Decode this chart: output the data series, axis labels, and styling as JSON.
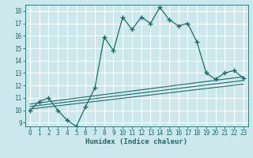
{
  "xlabel": "Humidex (Indice chaleur)",
  "background_color": "#cce8ec",
  "grid_color": "#ffffff",
  "line_color": "#1a6b6b",
  "xlim": [
    -0.5,
    23.5
  ],
  "ylim": [
    8.7,
    18.5
  ],
  "xticks": [
    0,
    1,
    2,
    3,
    4,
    5,
    6,
    7,
    8,
    9,
    10,
    11,
    12,
    13,
    14,
    15,
    16,
    17,
    18,
    19,
    20,
    21,
    22,
    23
  ],
  "yticks": [
    9,
    10,
    11,
    12,
    13,
    14,
    15,
    16,
    17,
    18
  ],
  "series": [
    {
      "x": [
        0,
        1,
        2,
        3,
        4,
        5,
        6,
        7,
        8,
        9,
        10,
        11,
        12,
        13,
        14,
        15,
        16,
        17,
        18,
        19,
        20,
        21,
        22,
        23
      ],
      "y": [
        10.0,
        10.7,
        11.0,
        10.0,
        9.2,
        8.7,
        10.3,
        11.8,
        15.9,
        14.8,
        17.5,
        16.5,
        17.5,
        17.0,
        18.3,
        17.3,
        16.8,
        17.0,
        15.5,
        13.0,
        12.5,
        13.0,
        13.2,
        12.6
      ],
      "marker": "+",
      "markersize": 4,
      "linewidth": 0.9,
      "linestyle": "-"
    },
    {
      "x": [
        0,
        23
      ],
      "y": [
        10.5,
        12.7
      ],
      "marker": null,
      "linewidth": 0.8,
      "linestyle": "-"
    },
    {
      "x": [
        0,
        23
      ],
      "y": [
        10.3,
        12.4
      ],
      "marker": null,
      "linewidth": 0.8,
      "linestyle": "-"
    },
    {
      "x": [
        0,
        23
      ],
      "y": [
        10.1,
        12.1
      ],
      "marker": null,
      "linewidth": 0.8,
      "linestyle": "-"
    }
  ]
}
